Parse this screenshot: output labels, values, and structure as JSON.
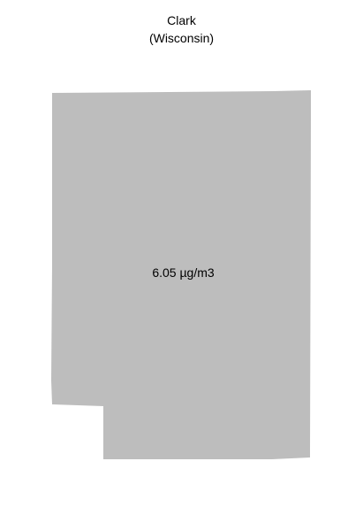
{
  "map": {
    "region_name": "Clark",
    "state_label": "(Wisconsin)",
    "value_label": "6.05 µg/m3",
    "fill_color": "#bdbdbd",
    "background_color": "#ffffff"
  }
}
